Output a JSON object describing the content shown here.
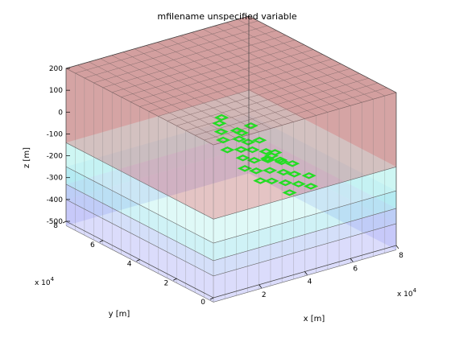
{
  "chart_data": {
    "type": "3d-mesh",
    "title": "mfilename unspecified variable",
    "xlabel": "x [m]",
    "ylabel": "y [m]",
    "zlabel": "z [m]",
    "x_exponent_label": "x 10",
    "x_exponent_power": "4",
    "y_exponent_label": "x 10",
    "y_exponent_power": "4",
    "xlim": [
      0,
      80000
    ],
    "ylim": [
      0,
      80000
    ],
    "zlim": [
      -500,
      200
    ],
    "x_ticks": [
      "2",
      "4",
      "6",
      "8"
    ],
    "y_ticks": [
      "0",
      "2",
      "4",
      "6",
      "8"
    ],
    "z_ticks": [
      "200",
      "100",
      "0",
      "-100",
      "-200",
      "-300",
      "-400",
      "-500"
    ],
    "grid": true,
    "layers": [
      {
        "z_top": 200,
        "z_bottom": -140,
        "color": "#c98a8a"
      },
      {
        "z_top": -140,
        "z_bottom": -250,
        "color": "#bff4f0"
      },
      {
        "z_top": -250,
        "z_bottom": -330,
        "color": "#9fe6ee"
      },
      {
        "z_top": -330,
        "z_bottom": -400,
        "color": "#a9bff4"
      },
      {
        "z_top": -400,
        "z_bottom": -520,
        "color": "#b7b9f7"
      }
    ],
    "wells": {
      "color": "#22dd22",
      "points": [
        {
          "x": 11000,
          "y": 72000,
          "z": -230
        },
        {
          "x": 46000,
          "y": 30000,
          "z": 60
        },
        {
          "x": 52000,
          "y": 26000,
          "z": 60
        },
        {
          "x": 58000,
          "y": 22000,
          "z": 60
        },
        {
          "x": 64000,
          "y": 19000,
          "z": 50
        },
        {
          "x": 41000,
          "y": 35000,
          "z": 50
        },
        {
          "x": 47000,
          "y": 37000,
          "z": 10
        },
        {
          "x": 53000,
          "y": 33000,
          "z": 10
        },
        {
          "x": 59000,
          "y": 29000,
          "z": 0
        },
        {
          "x": 65000,
          "y": 25000,
          "z": 0
        },
        {
          "x": 71000,
          "y": 21000,
          "z": -10
        },
        {
          "x": 42000,
          "y": 43000,
          "z": -40
        },
        {
          "x": 48000,
          "y": 41000,
          "z": -50
        },
        {
          "x": 54000,
          "y": 38000,
          "z": -50
        },
        {
          "x": 60000,
          "y": 34000,
          "z": -60
        },
        {
          "x": 66000,
          "y": 30000,
          "z": -70
        },
        {
          "x": 72000,
          "y": 27000,
          "z": -80
        },
        {
          "x": 43000,
          "y": 50000,
          "z": -90
        },
        {
          "x": 49000,
          "y": 48000,
          "z": -110
        },
        {
          "x": 55000,
          "y": 44000,
          "z": -110
        },
        {
          "x": 61000,
          "y": 40000,
          "z": -120
        },
        {
          "x": 67000,
          "y": 36000,
          "z": -130
        },
        {
          "x": 44000,
          "y": 56000,
          "z": -160
        },
        {
          "x": 50000,
          "y": 54000,
          "z": -170
        },
        {
          "x": 56000,
          "y": 50000,
          "z": -180
        },
        {
          "x": 62000,
          "y": 46000,
          "z": -190
        },
        {
          "x": 68000,
          "y": 43000,
          "z": -200
        },
        {
          "x": 46000,
          "y": 62000,
          "z": -220
        },
        {
          "x": 52000,
          "y": 58000,
          "z": -230
        },
        {
          "x": 58000,
          "y": 55000,
          "z": -240
        },
        {
          "x": 50000,
          "y": 66000,
          "z": -270
        },
        {
          "x": 56000,
          "y": 62000,
          "z": -280
        },
        {
          "x": 51000,
          "y": 47000,
          "z": -130
        },
        {
          "x": 47000,
          "y": 52000,
          "z": -150
        },
        {
          "x": 53000,
          "y": 51000,
          "z": -140
        }
      ]
    }
  }
}
